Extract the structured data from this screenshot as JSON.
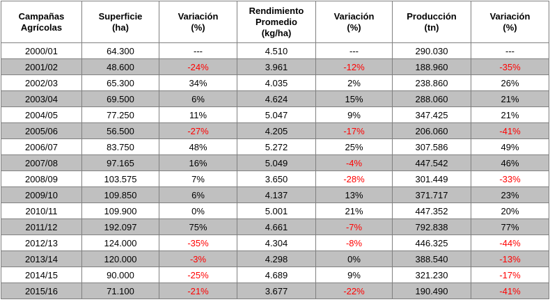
{
  "table": {
    "headers": [
      "Campañas\nAgrícolas",
      "Superficie\n(ha)",
      "Variación\n(%)",
      "Rendimiento\nPromedio\n(kg/ha)",
      "Variación\n(%)",
      "Producción\n(tn)",
      "Variación\n(%)"
    ],
    "rows": [
      [
        "2000/01",
        "64.300",
        "---",
        "4.510",
        "---",
        "290.030",
        "---"
      ],
      [
        "2001/02",
        "48.600",
        "-24%",
        "3.961",
        "-12%",
        "188.960",
        "-35%"
      ],
      [
        "2002/03",
        "65.300",
        "34%",
        "4.035",
        "2%",
        "238.860",
        "26%"
      ],
      [
        "2003/04",
        "69.500",
        "6%",
        "4.624",
        "15%",
        "288.060",
        "21%"
      ],
      [
        "2004/05",
        "77.250",
        "11%",
        "5.047",
        "9%",
        "347.425",
        "21%"
      ],
      [
        "2005/06",
        "56.500",
        "-27%",
        "4.205",
        "-17%",
        "206.060",
        "-41%"
      ],
      [
        "2006/07",
        "83.750",
        "48%",
        "5.272",
        "25%",
        "307.586",
        "49%"
      ],
      [
        "2007/08",
        "97.165",
        "16%",
        "5.049",
        "-4%",
        "447.542",
        "46%"
      ],
      [
        "2008/09",
        "103.575",
        "7%",
        "3.650",
        "-28%",
        "301.449",
        "-33%"
      ],
      [
        "2009/10",
        "109.850",
        "6%",
        "4.137",
        "13%",
        "371.717",
        "23%"
      ],
      [
        "2010/11",
        "109.900",
        "0%",
        "5.001",
        "21%",
        "447.352",
        "20%"
      ],
      [
        "2011/12",
        "192.097",
        "75%",
        "4.661",
        "-7%",
        "792.838",
        "77%"
      ],
      [
        "2012/13",
        "124.000",
        "-35%",
        "4.304",
        "-8%",
        "446.325",
        "-44%"
      ],
      [
        "2013/14",
        "120.000",
        "-3%",
        "4.298",
        "0%",
        "388.540",
        "-13%"
      ],
      [
        "2014/15",
        "90.000",
        "-25%",
        "4.689",
        "9%",
        "321.230",
        "-17%"
      ],
      [
        "2015/16",
        "71.100",
        "-21%",
        "3.677",
        "-22%",
        "190.490",
        "-41%"
      ]
    ]
  }
}
